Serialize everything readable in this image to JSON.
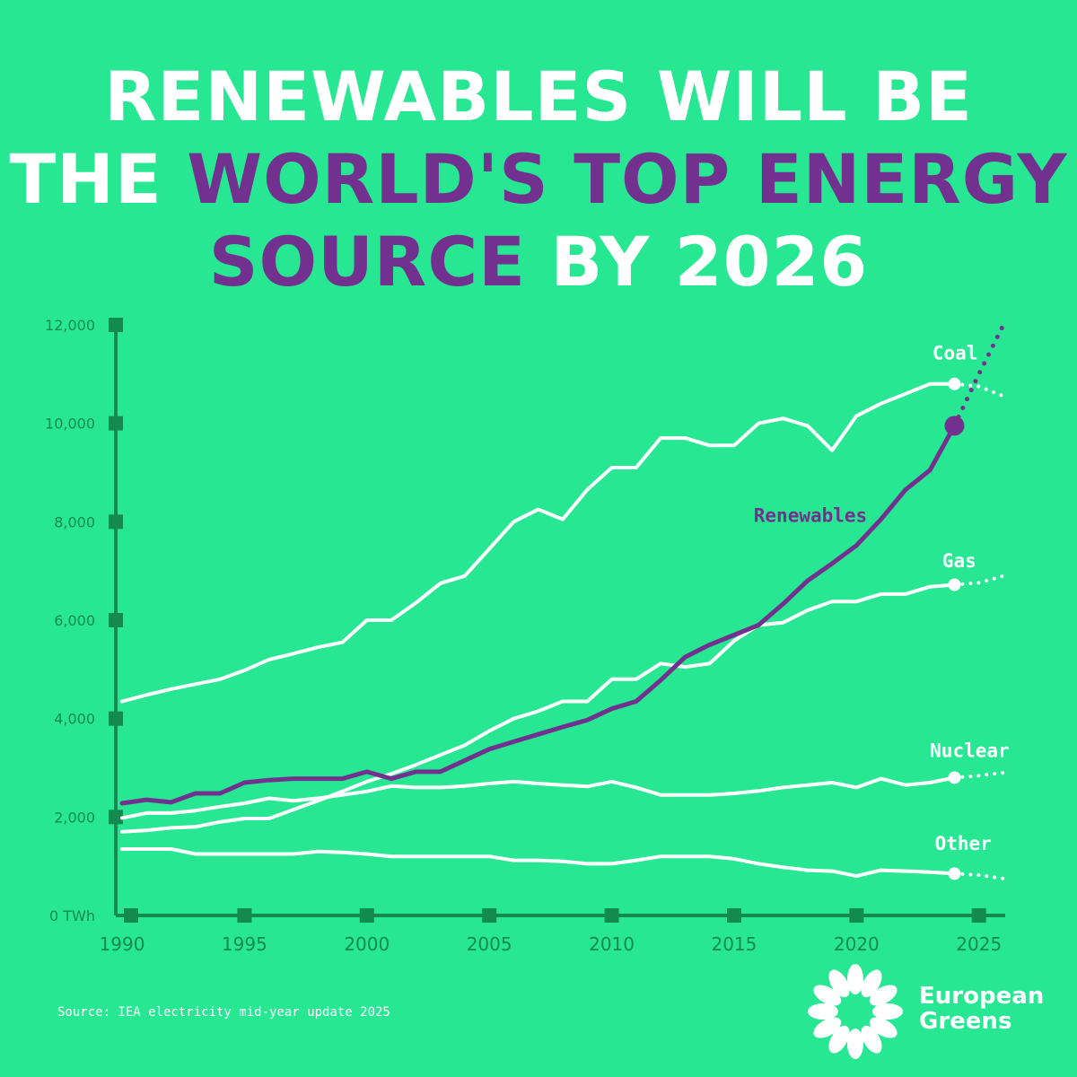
{
  "headline": {
    "line1": "RENEWABLES WILL BE",
    "line2_prefix": "THE ",
    "line2_highlight": "WORLD'S TOP ENERGY",
    "line3_highlight": "SOURCE",
    "line3_suffix": " BY 2026"
  },
  "source": "Source: IEA electricity mid-year update 2025",
  "brand": {
    "line1": "European",
    "line2": "Greens"
  },
  "colors": {
    "background": "#27e793",
    "axis": "#128a50",
    "white": "#ffffff",
    "renewables": "#73318f",
    "tick_text": "#128a50"
  },
  "chart_data": {
    "type": "line",
    "title": "RENEWABLES WILL BE THE WORLD'S TOP ENERGY SOURCE BY 2026",
    "xlim": [
      1990,
      2026
    ],
    "ylim": [
      0,
      12000
    ],
    "x_ticks": [
      1990,
      1995,
      2000,
      2005,
      2010,
      2015,
      2020,
      2025
    ],
    "x_tick_labels": [
      "1990",
      "1995",
      "2000",
      "2005",
      "2010",
      "2015",
      "2020",
      "2025"
    ],
    "y_ticks": [
      0,
      2000,
      4000,
      6000,
      8000,
      10000,
      12000
    ],
    "y_tick_labels": [
      "0 TWh",
      "2,000",
      "4,000",
      "6,000",
      "8,000",
      "10,000",
      "12,000"
    ],
    "x": [
      1990,
      1991,
      1992,
      1993,
      1994,
      1995,
      1996,
      1997,
      1998,
      1999,
      2000,
      2001,
      2002,
      2003,
      2004,
      2005,
      2006,
      2007,
      2008,
      2009,
      2010,
      2011,
      2012,
      2013,
      2014,
      2015,
      2016,
      2017,
      2018,
      2019,
      2020,
      2021,
      2022,
      2023,
      2024
    ],
    "series": [
      {
        "name": "Coal",
        "color": "#ffffff",
        "values": [
          4350,
          4480,
          4600,
          4700,
          4800,
          4980,
          5200,
          5320,
          5450,
          5550,
          6000,
          6000,
          6350,
          6750,
          6900,
          7450,
          8000,
          8250,
          8050,
          8650,
          9100,
          9100,
          9700,
          9700,
          9550,
          9550,
          10000,
          10100,
          9950,
          9450,
          10150,
          10400,
          10600,
          10800,
          10800
        ],
        "forecast_x": [
          2024,
          2025,
          2026
        ],
        "forecast_values": [
          10800,
          10750,
          10550
        ]
      },
      {
        "name": "Renewables",
        "color": "#73318f",
        "values": [
          2280,
          2350,
          2300,
          2480,
          2480,
          2700,
          2750,
          2780,
          2780,
          2780,
          2920,
          2780,
          2920,
          2920,
          3150,
          3380,
          3530,
          3680,
          3830,
          3970,
          4200,
          4350,
          4780,
          5250,
          5500,
          5700,
          5900,
          6330,
          6800,
          7150,
          7520,
          8050,
          8650,
          9050,
          9950
        ],
        "forecast_x": [
          2024,
          2025,
          2026
        ],
        "forecast_values": [
          9950,
          11000,
          12000
        ]
      },
      {
        "name": "Gas",
        "color": "#ffffff",
        "values": [
          1700,
          1730,
          1780,
          1800,
          1900,
          1970,
          1970,
          2150,
          2330,
          2520,
          2720,
          2880,
          3060,
          3260,
          3460,
          3750,
          4000,
          4150,
          4350,
          4350,
          4800,
          4800,
          5120,
          5050,
          5120,
          5580,
          5900,
          5950,
          6200,
          6380,
          6380,
          6530,
          6530,
          6680,
          6720
        ],
        "forecast_x": [
          2024,
          2025,
          2026
        ],
        "forecast_values": [
          6720,
          6760,
          6900
        ]
      },
      {
        "name": "Nuclear",
        "color": "#ffffff",
        "values": [
          1980,
          2080,
          2080,
          2130,
          2210,
          2280,
          2380,
          2330,
          2380,
          2450,
          2520,
          2630,
          2600,
          2600,
          2630,
          2680,
          2720,
          2680,
          2650,
          2620,
          2720,
          2600,
          2450,
          2450,
          2450,
          2480,
          2530,
          2600,
          2650,
          2700,
          2600,
          2780,
          2650,
          2700,
          2800
        ],
        "forecast_x": [
          2024,
          2025,
          2026
        ],
        "forecast_values": [
          2800,
          2840,
          2900
        ]
      },
      {
        "name": "Other",
        "color": "#ffffff",
        "values": [
          1350,
          1350,
          1350,
          1250,
          1250,
          1250,
          1250,
          1250,
          1300,
          1280,
          1250,
          1200,
          1200,
          1200,
          1200,
          1200,
          1120,
          1120,
          1100,
          1050,
          1050,
          1120,
          1200,
          1200,
          1200,
          1150,
          1050,
          980,
          920,
          900,
          800,
          920,
          900,
          880,
          850
        ],
        "forecast_x": [
          2024,
          2025,
          2026
        ],
        "forecast_values": [
          850,
          820,
          750
        ]
      }
    ],
    "labels": [
      {
        "series": "Coal",
        "text": "Coal",
        "x": 2023.1,
        "y": 11300
      },
      {
        "series": "Renewables",
        "text": "Renewables",
        "x": 2015.8,
        "y": 8000
      },
      {
        "series": "Gas",
        "text": "Gas",
        "x": 2023.5,
        "y": 7080
      },
      {
        "series": "Nuclear",
        "text": "Nuclear",
        "x": 2023.0,
        "y": 3220
      },
      {
        "series": "Other",
        "text": "Other",
        "x": 2023.2,
        "y": 1330
      }
    ]
  }
}
